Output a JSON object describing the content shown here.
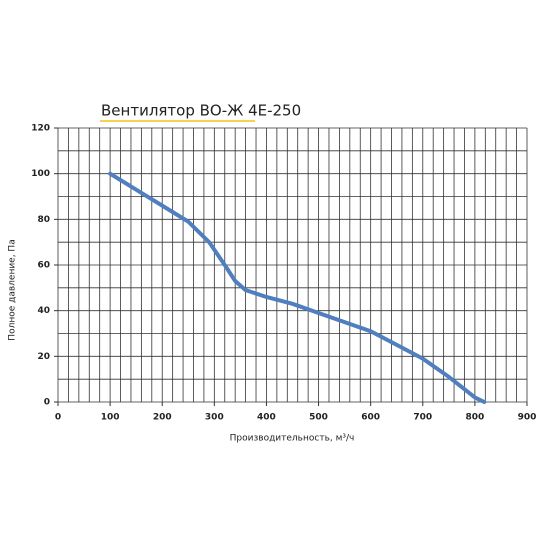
{
  "chart_data": {
    "type": "line",
    "title": "Вентилятор ВО-Ж 4Е-250",
    "xlabel": "Производительность, м³/ч",
    "ylabel": "Полное давление, Па",
    "x": [
      100,
      150,
      200,
      250,
      290,
      320,
      340,
      360,
      400,
      450,
      500,
      550,
      600,
      650,
      700,
      750,
      800,
      818
    ],
    "values": [
      100,
      93,
      86,
      79,
      70,
      60,
      53,
      49,
      46,
      43,
      39,
      35,
      31,
      25,
      19,
      11,
      2,
      0
    ],
    "color": "#4f7fbf",
    "xlim": [
      0,
      900
    ],
    "xticks": [
      0,
      100,
      200,
      300,
      400,
      500,
      600,
      700,
      800,
      900
    ],
    "ylim": [
      0,
      120
    ],
    "yticks": [
      0,
      20,
      40,
      60,
      80,
      100,
      120
    ],
    "grid": true,
    "x_grid_step": 20,
    "y_grid_step": 10
  }
}
